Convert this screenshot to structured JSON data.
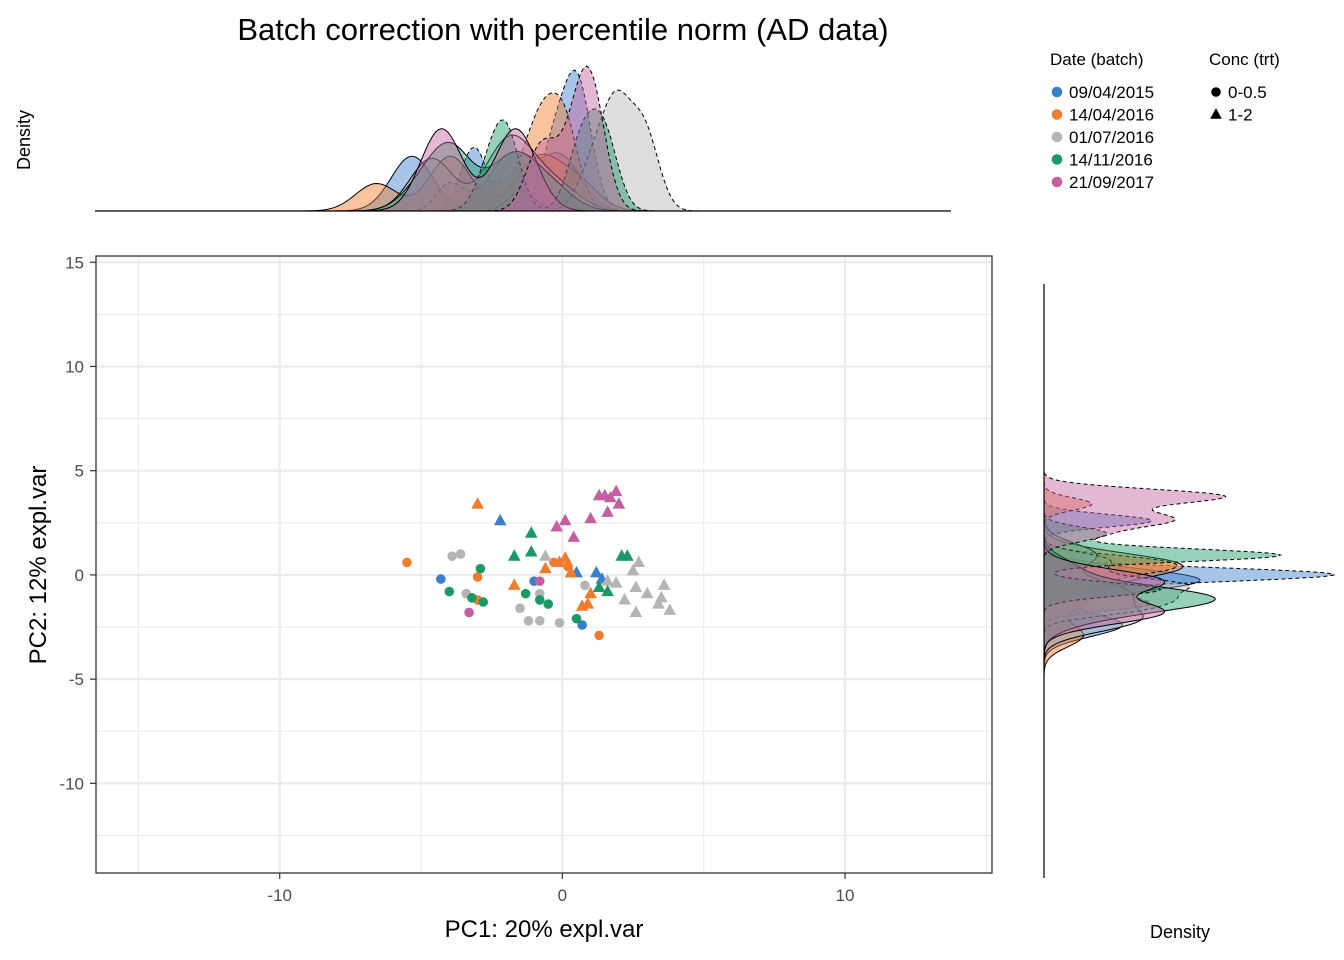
{
  "chart_data": {
    "type": "scatter",
    "title": "Batch correction with percentile norm (AD data)",
    "xlabel": "PC1: 20% expl.var",
    "ylabel": "PC2: 12% expl.var",
    "xlim": [
      -16.5,
      15.2
    ],
    "ylim": [
      -14.3,
      15.3
    ],
    "xticks": [
      -10,
      0,
      10
    ],
    "xtick_labels": [
      "-10",
      "0",
      "10"
    ],
    "yticks": [
      -10,
      -5,
      0,
      5,
      10,
      15
    ],
    "ytick_labels": [
      "-10",
      "-5",
      "0",
      "5",
      "10",
      "15"
    ],
    "grid": true,
    "top_panel_label": "Density",
    "right_panel_label": "Density",
    "legend": {
      "position": "top-right",
      "color_title": "Date (batch)",
      "shape_title": "Conc (trt)",
      "shapes": [
        {
          "label": "0-0.5",
          "shape": "circle"
        },
        {
          "label": "1-2",
          "shape": "triangle"
        }
      ]
    },
    "series": [
      {
        "name": "09/04/2015",
        "color": "#3a7fcc",
        "points": [
          {
            "x": -4.3,
            "y": -0.2,
            "conc": "0-0.5"
          },
          {
            "x": -1.0,
            "y": -0.3,
            "conc": "0-0.5"
          },
          {
            "x": 0.7,
            "y": -2.4,
            "conc": "0-0.5"
          },
          {
            "x": -2.2,
            "y": 2.6,
            "conc": "1-2"
          },
          {
            "x": 0.5,
            "y": 0.1,
            "conc": "1-2"
          },
          {
            "x": 1.2,
            "y": 0.1,
            "conc": "1-2"
          },
          {
            "x": 1.4,
            "y": -0.2,
            "conc": "1-2"
          }
        ]
      },
      {
        "name": "14/04/2016",
        "color": "#ef7d2d",
        "points": [
          {
            "x": -5.5,
            "y": 0.6,
            "conc": "0-0.5"
          },
          {
            "x": -3.0,
            "y": -0.1,
            "conc": "0-0.5"
          },
          {
            "x": -3.0,
            "y": -1.2,
            "conc": "0-0.5"
          },
          {
            "x": -0.3,
            "y": 0.6,
            "conc": "0-0.5"
          },
          {
            "x": 0.2,
            "y": 0.4,
            "conc": "0-0.5"
          },
          {
            "x": 1.3,
            "y": -2.9,
            "conc": "0-0.5"
          },
          {
            "x": -3.0,
            "y": 3.4,
            "conc": "1-2"
          },
          {
            "x": -1.7,
            "y": -0.5,
            "conc": "1-2"
          },
          {
            "x": -0.6,
            "y": 0.3,
            "conc": "1-2"
          },
          {
            "x": -0.1,
            "y": 0.6,
            "conc": "1-2"
          },
          {
            "x": 0.1,
            "y": 0.8,
            "conc": "1-2"
          },
          {
            "x": 0.3,
            "y": 0.1,
            "conc": "1-2"
          },
          {
            "x": 0.7,
            "y": -1.5,
            "conc": "1-2"
          },
          {
            "x": 0.9,
            "y": -1.4,
            "conc": "1-2"
          },
          {
            "x": 1.0,
            "y": -0.9,
            "conc": "1-2"
          }
        ]
      },
      {
        "name": "01/07/2016",
        "color": "#b4b4b4",
        "points": [
          {
            "x": -3.9,
            "y": 0.9,
            "conc": "0-0.5"
          },
          {
            "x": -3.6,
            "y": 1.0,
            "conc": "0-0.5"
          },
          {
            "x": -3.4,
            "y": -0.9,
            "conc": "0-0.5"
          },
          {
            "x": -1.5,
            "y": -1.6,
            "conc": "0-0.5"
          },
          {
            "x": -1.2,
            "y": -2.2,
            "conc": "0-0.5"
          },
          {
            "x": -0.8,
            "y": -2.2,
            "conc": "0-0.5"
          },
          {
            "x": -0.8,
            "y": -0.9,
            "conc": "0-0.5"
          },
          {
            "x": -0.1,
            "y": -2.3,
            "conc": "0-0.5"
          },
          {
            "x": 0.8,
            "y": -0.5,
            "conc": "0-0.5"
          },
          {
            "x": -0.6,
            "y": 0.9,
            "conc": "1-2"
          },
          {
            "x": 1.6,
            "y": -0.3,
            "conc": "1-2"
          },
          {
            "x": 1.9,
            "y": -0.4,
            "conc": "1-2"
          },
          {
            "x": 2.2,
            "y": -1.2,
            "conc": "1-2"
          },
          {
            "x": 2.5,
            "y": 0.2,
            "conc": "1-2"
          },
          {
            "x": 2.7,
            "y": 0.6,
            "conc": "1-2"
          },
          {
            "x": 2.6,
            "y": -0.6,
            "conc": "1-2"
          },
          {
            "x": 3.0,
            "y": -0.9,
            "conc": "1-2"
          },
          {
            "x": 2.6,
            "y": -1.8,
            "conc": "1-2"
          },
          {
            "x": 3.4,
            "y": -1.4,
            "conc": "1-2"
          },
          {
            "x": 3.5,
            "y": -1.1,
            "conc": "1-2"
          },
          {
            "x": 3.6,
            "y": -0.5,
            "conc": "1-2"
          },
          {
            "x": 3.8,
            "y": -1.7,
            "conc": "1-2"
          }
        ]
      },
      {
        "name": "14/11/2016",
        "color": "#199a64",
        "points": [
          {
            "x": -4.0,
            "y": -0.8,
            "conc": "0-0.5"
          },
          {
            "x": -3.2,
            "y": -1.1,
            "conc": "0-0.5"
          },
          {
            "x": -2.9,
            "y": 0.3,
            "conc": "0-0.5"
          },
          {
            "x": -2.8,
            "y": -1.3,
            "conc": "0-0.5"
          },
          {
            "x": -1.3,
            "y": -0.9,
            "conc": "0-0.5"
          },
          {
            "x": -0.8,
            "y": -1.2,
            "conc": "0-0.5"
          },
          {
            "x": -0.5,
            "y": -1.4,
            "conc": "0-0.5"
          },
          {
            "x": 0.5,
            "y": -2.1,
            "conc": "0-0.5"
          },
          {
            "x": -1.7,
            "y": 0.9,
            "conc": "1-2"
          },
          {
            "x": -1.1,
            "y": 2.0,
            "conc": "1-2"
          },
          {
            "x": -1.1,
            "y": 1.1,
            "conc": "1-2"
          },
          {
            "x": 1.3,
            "y": -0.6,
            "conc": "1-2"
          },
          {
            "x": 1.6,
            "y": -0.8,
            "conc": "1-2"
          },
          {
            "x": 2.1,
            "y": 0.9,
            "conc": "1-2"
          },
          {
            "x": 2.3,
            "y": 0.9,
            "conc": "1-2"
          }
        ]
      },
      {
        "name": "21/09/2017",
        "color": "#c460a0",
        "points": [
          {
            "x": -3.3,
            "y": -1.8,
            "conc": "0-0.5"
          },
          {
            "x": -0.8,
            "y": -0.3,
            "conc": "0-0.5"
          },
          {
            "x": -0.2,
            "y": 2.3,
            "conc": "1-2"
          },
          {
            "x": 0.1,
            "y": 2.6,
            "conc": "1-2"
          },
          {
            "x": 0.4,
            "y": 1.8,
            "conc": "1-2"
          },
          {
            "x": 1.0,
            "y": 2.7,
            "conc": "1-2"
          },
          {
            "x": 1.3,
            "y": 3.8,
            "conc": "1-2"
          },
          {
            "x": 1.5,
            "y": 3.8,
            "conc": "1-2"
          },
          {
            "x": 1.6,
            "y": 3.0,
            "conc": "1-2"
          },
          {
            "x": 1.7,
            "y": 3.7,
            "conc": "1-2"
          },
          {
            "x": 1.9,
            "y": 4.0,
            "conc": "1-2"
          },
          {
            "x": 2.0,
            "y": 3.4,
            "conc": "1-2"
          }
        ]
      }
    ]
  }
}
